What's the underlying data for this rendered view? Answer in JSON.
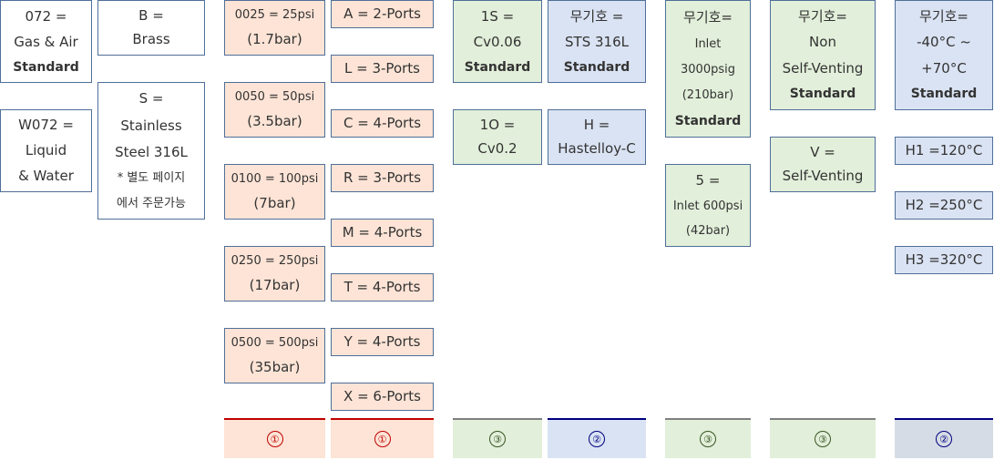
{
  "colors": {
    "border": "#4f6f99",
    "orange_fill": "#fde4d6",
    "green_fill": "#e2efda",
    "blue_fill": "#dae3f3",
    "red_marker": "#c00000",
    "green_marker": "#375623",
    "blue_marker": "#000080"
  },
  "col1": {
    "gas": [
      "072 =",
      "Gas & Air",
      "Standard"
    ],
    "liquid": [
      "W072 =",
      "Liquid",
      "& Water"
    ]
  },
  "col2": {
    "brass": [
      "B =",
      "Brass"
    ],
    "stainless": [
      "S =",
      "Stainless",
      "Steel 316L",
      "* 별도 페이지",
      "에서 주문가능"
    ]
  },
  "col3": {
    "p0025": [
      "0025 = 25psi",
      "(1.7bar)"
    ],
    "p0050": [
      "0050 = 50psi",
      "(3.5bar)"
    ],
    "p0100": [
      "0100 = 100psi",
      "(7bar)"
    ],
    "p0250": [
      "0250 = 250psi",
      "(17bar)"
    ],
    "p0500": [
      "0500 = 500psi",
      "(35bar)"
    ]
  },
  "col4": {
    "ports": [
      "A = 2-Ports",
      "L = 3-Ports",
      "C = 4-Ports",
      "R = 3-Ports",
      "M = 4-Ports",
      "T = 4-Ports",
      "Y = 4-Ports",
      "X = 6-Ports"
    ]
  },
  "col5": {
    "s1": [
      "1S =",
      "Cv0.06",
      "Standard"
    ],
    "o1": [
      "1O =",
      "Cv0.2"
    ]
  },
  "col6": {
    "sts": [
      "무기호 =",
      "STS 316L",
      "Standard"
    ],
    "hast": [
      "H =",
      "Hastelloy-C"
    ]
  },
  "col7": {
    "inlet3000": [
      "무기호=",
      "Inlet",
      "3000psig",
      "(210bar)",
      "Standard"
    ],
    "inlet600": [
      "5 =",
      "Inlet 600psi",
      "(42bar)"
    ]
  },
  "col8": {
    "nonvent": [
      "무기호=",
      "Non",
      "Self-Venting",
      "Standard"
    ],
    "vent": [
      "V =",
      "Self-Venting"
    ]
  },
  "col9": {
    "temp": [
      "무기호=",
      "-40°C ~",
      "+70°C",
      "Standard"
    ],
    "h1": "H1 =120°C",
    "h2": "H2 =250°C",
    "h3": "H3 =320°C"
  },
  "footer": {
    "markers": [
      "①",
      "①",
      "③",
      "②",
      "③",
      "③",
      "②"
    ]
  }
}
